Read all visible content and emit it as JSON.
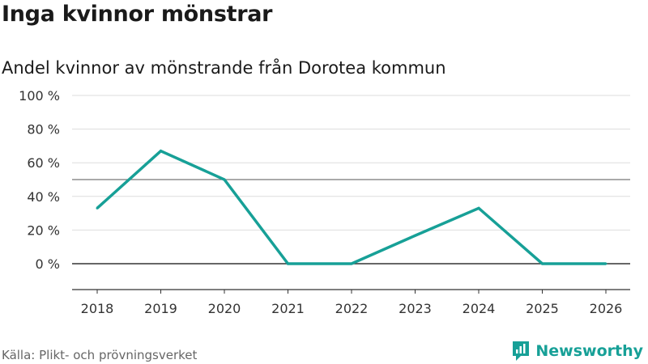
{
  "title": "Inga kvinnor mönstrar",
  "subtitle": "Andel kvinnor av mönstrande från Dorotea kommun",
  "source": "Källa: Plikt- och prövningsverket",
  "brand": "Newsworthy",
  "colors": {
    "line": "#17a097",
    "brand": "#17a097",
    "grid": "#dddddd",
    "zero": "#333333",
    "ref": "#777777"
  },
  "chart_data": {
    "type": "line",
    "title": "Inga kvinnor mönstrar",
    "subtitle": "Andel kvinnor av mönstrande från Dorotea kommun",
    "x": [
      "2018",
      "2019",
      "2020",
      "2021",
      "2022",
      "2023",
      "2024",
      "2025",
      "2026"
    ],
    "series": [
      {
        "name": "Andel kvinnor",
        "values": [
          33,
          67,
          50,
          0,
          0,
          16.7,
          33,
          0,
          0
        ]
      }
    ],
    "yticks": [
      0,
      20,
      40,
      60,
      80,
      100
    ],
    "ytick_labels": [
      "0 %",
      "20 %",
      "40 %",
      "60 %",
      "80 %",
      "100 %"
    ],
    "reference_line": 50,
    "ylim": [
      -15,
      100
    ],
    "xlabel": "",
    "ylabel": ""
  }
}
